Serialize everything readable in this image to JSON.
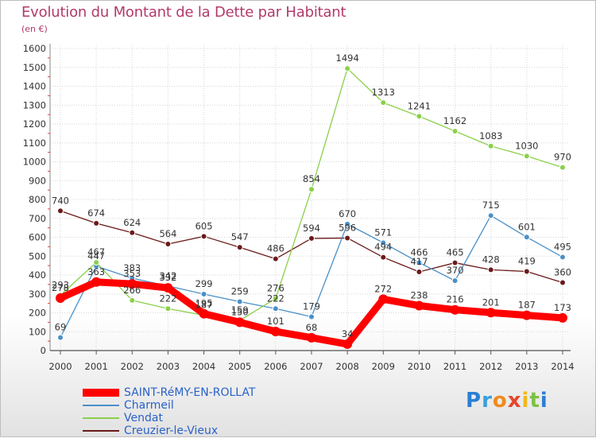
{
  "title": "Evolution du Montant de la Dette par Habitant",
  "unit": "(en €)",
  "logo": "Proxiti",
  "chart_data": {
    "type": "line",
    "title": "Evolution du Montant de la Dette par Habitant",
    "ylabel": "(en €)",
    "ylim": [
      0,
      1600
    ],
    "yticks": [
      0,
      100,
      200,
      300,
      400,
      500,
      600,
      700,
      800,
      900,
      1000,
      1100,
      1200,
      1300,
      1400,
      1500,
      1600
    ],
    "x": [
      "2000",
      "2001",
      "2002",
      "2003",
      "2004",
      "2005",
      "2006",
      "2007",
      "2008",
      "2009",
      "2010",
      "2011",
      "2012",
      "2013",
      "2014"
    ],
    "grid": true,
    "legend": "bottom-left",
    "series": [
      {
        "name": "SAINT-RéMY-EN-ROLLAT",
        "color": "#ff0000",
        "values": [
          278,
          363,
          353,
          332,
          195,
          150,
          101,
          68,
          34,
          272,
          238,
          216,
          201,
          187,
          173
        ]
      },
      {
        "name": "Charmeil",
        "color": "#4a90c8",
        "values": [
          69,
          447,
          383,
          342,
          299,
          259,
          222,
          179,
          670,
          571,
          466,
          370,
          715,
          601,
          495
        ]
      },
      {
        "name": "Vendat",
        "color": "#8ad04a",
        "values": [
          293,
          467,
          266,
          222,
          187,
          159,
          276,
          854,
          1494,
          1313,
          1241,
          1162,
          1083,
          1030,
          970
        ]
      },
      {
        "name": "Creuzier-le-Vieux",
        "color": "#6b1a1a",
        "values": [
          740,
          674,
          624,
          564,
          605,
          547,
          486,
          594,
          596,
          494,
          417,
          465,
          428,
          419,
          360
        ]
      }
    ]
  }
}
